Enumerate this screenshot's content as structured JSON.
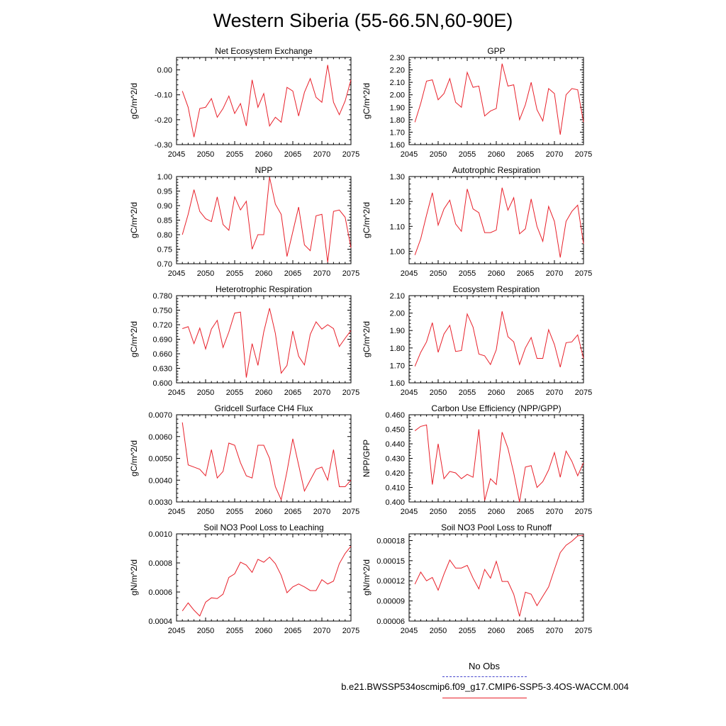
{
  "title": "Western Siberia (55-66.5N,60-90E)",
  "legend": {
    "obs_label": "No Obs",
    "obs_color": "#4444cc",
    "model_label": "b.e21.BWSSP534oscmip6.f09_g17.CMIP6-SSP5-3.4OS-WACCM.004",
    "model_color": "#e8202a"
  },
  "chart_data": [
    {
      "type": "line",
      "title": "Net Ecosystem Exchange",
      "ylabel": "gC/m^2/d",
      "xlim": [
        2045,
        2075
      ],
      "ylim": [
        -0.3,
        0.05
      ],
      "xticks": [
        2045,
        2050,
        2055,
        2060,
        2065,
        2070,
        2075
      ],
      "yticks": [
        "0.00",
        "-0.10",
        "-0.20",
        "-0.30"
      ],
      "x": [
        2046,
        2047,
        2048,
        2049,
        2050,
        2051,
        2052,
        2053,
        2054,
        2055,
        2056,
        2057,
        2058,
        2059,
        2060,
        2061,
        2062,
        2063,
        2064,
        2065,
        2066,
        2067,
        2068,
        2069,
        2070,
        2071,
        2072,
        2073,
        2074,
        2075
      ],
      "series": [
        {
          "color": "#e8202a",
          "values": [
            -0.085,
            -0.15,
            -0.27,
            -0.155,
            -0.15,
            -0.115,
            -0.19,
            -0.155,
            -0.105,
            -0.175,
            -0.135,
            -0.225,
            -0.04,
            -0.15,
            -0.095,
            -0.225,
            -0.19,
            -0.21,
            -0.07,
            -0.085,
            -0.185,
            -0.09,
            -0.035,
            -0.11,
            -0.13,
            0.02,
            -0.13,
            -0.18,
            -0.125,
            -0.04
          ]
        }
      ]
    },
    {
      "type": "line",
      "title": "GPP",
      "ylabel": "gC/m^2/d",
      "xlim": [
        2045,
        2075
      ],
      "ylim": [
        1.6,
        2.3
      ],
      "xticks": [
        2045,
        2050,
        2055,
        2060,
        2065,
        2070,
        2075
      ],
      "yticks": [
        "2.30",
        "2.20",
        "2.10",
        "2.00",
        "1.90",
        "1.80",
        "1.70",
        "1.60"
      ],
      "x": [
        2046,
        2047,
        2048,
        2049,
        2050,
        2051,
        2052,
        2053,
        2054,
        2055,
        2056,
        2057,
        2058,
        2059,
        2060,
        2061,
        2062,
        2063,
        2064,
        2065,
        2066,
        2067,
        2068,
        2069,
        2070,
        2071,
        2072,
        2073,
        2074,
        2075
      ],
      "series": [
        {
          "color": "#e8202a",
          "values": [
            1.78,
            1.93,
            2.11,
            2.12,
            1.96,
            2.01,
            2.13,
            1.94,
            1.9,
            2.18,
            2.06,
            2.07,
            1.83,
            1.87,
            1.89,
            2.25,
            2.07,
            2.08,
            1.8,
            1.92,
            2.1,
            1.88,
            1.79,
            2.05,
            2.01,
            1.68,
            2.0,
            2.05,
            2.04,
            1.78
          ]
        }
      ]
    },
    {
      "type": "line",
      "title": "NPP",
      "ylabel": "gC/m^2/d",
      "xlim": [
        2045,
        2075
      ],
      "ylim": [
        0.7,
        1.0
      ],
      "xticks": [
        2045,
        2050,
        2055,
        2060,
        2065,
        2070,
        2075
      ],
      "yticks": [
        "1.00",
        "0.95",
        "0.90",
        "0.85",
        "0.80",
        "0.75",
        "0.70"
      ],
      "x": [
        2046,
        2047,
        2048,
        2049,
        2050,
        2051,
        2052,
        2053,
        2054,
        2055,
        2056,
        2057,
        2058,
        2059,
        2060,
        2061,
        2062,
        2063,
        2064,
        2065,
        2066,
        2067,
        2068,
        2069,
        2070,
        2071,
        2072,
        2073,
        2074,
        2075
      ],
      "series": [
        {
          "color": "#e8202a",
          "values": [
            0.8,
            0.87,
            0.955,
            0.88,
            0.855,
            0.845,
            0.93,
            0.835,
            0.815,
            0.93,
            0.885,
            0.915,
            0.75,
            0.8,
            0.8,
            0.998,
            0.905,
            0.87,
            0.725,
            0.81,
            0.895,
            0.765,
            0.745,
            0.865,
            0.87,
            0.705,
            0.88,
            0.885,
            0.86,
            0.755
          ]
        }
      ]
    },
    {
      "type": "line",
      "title": "Autotrophic Respiration",
      "ylabel": "gC/m^2/d",
      "xlim": [
        2045,
        2075
      ],
      "ylim": [
        0.95,
        1.3
      ],
      "xticks": [
        2045,
        2050,
        2055,
        2060,
        2065,
        2070,
        2075
      ],
      "yticks": [
        "1.30",
        "1.20",
        "1.10",
        "1.00"
      ],
      "x": [
        2046,
        2047,
        2048,
        2049,
        2050,
        2051,
        2052,
        2053,
        2054,
        2055,
        2056,
        2057,
        2058,
        2059,
        2060,
        2061,
        2062,
        2063,
        2064,
        2065,
        2066,
        2067,
        2068,
        2069,
        2070,
        2071,
        2072,
        2073,
        2074,
        2075
      ],
      "series": [
        {
          "color": "#e8202a",
          "values": [
            0.985,
            1.05,
            1.145,
            1.235,
            1.105,
            1.17,
            1.205,
            1.11,
            1.08,
            1.25,
            1.17,
            1.155,
            1.075,
            1.075,
            1.085,
            1.255,
            1.165,
            1.215,
            1.07,
            1.09,
            1.21,
            1.1,
            1.04,
            1.18,
            1.12,
            0.975,
            1.12,
            1.16,
            1.185,
            1.03
          ]
        }
      ]
    },
    {
      "type": "line",
      "title": "Heterotrophic Respiration",
      "ylabel": "gC/m^2/d",
      "xlim": [
        2045,
        2075
      ],
      "ylim": [
        0.6,
        0.78
      ],
      "xticks": [
        2045,
        2050,
        2055,
        2060,
        2065,
        2070,
        2075
      ],
      "yticks": [
        "0.780",
        "0.750",
        "0.720",
        "0.690",
        "0.660",
        "0.630",
        "0.600"
      ],
      "x": [
        2046,
        2047,
        2048,
        2049,
        2050,
        2051,
        2052,
        2053,
        2054,
        2055,
        2056,
        2057,
        2058,
        2059,
        2060,
        2061,
        2062,
        2063,
        2064,
        2065,
        2066,
        2067,
        2068,
        2069,
        2070,
        2071,
        2072,
        2073,
        2074,
        2075
      ],
      "series": [
        {
          "color": "#e8202a",
          "values": [
            0.712,
            0.716,
            0.681,
            0.713,
            0.67,
            0.711,
            0.729,
            0.673,
            0.705,
            0.744,
            0.746,
            0.611,
            0.681,
            0.636,
            0.705,
            0.754,
            0.702,
            0.62,
            0.636,
            0.707,
            0.655,
            0.637,
            0.7,
            0.726,
            0.711,
            0.72,
            0.712,
            0.675,
            0.692,
            0.708
          ]
        }
      ]
    },
    {
      "type": "line",
      "title": "Ecosystem Respiration",
      "ylabel": "gC/m^2/d",
      "xlim": [
        2045,
        2075
      ],
      "ylim": [
        1.6,
        2.1
      ],
      "xticks": [
        2045,
        2050,
        2055,
        2060,
        2065,
        2070,
        2075
      ],
      "yticks": [
        "2.10",
        "2.00",
        "1.90",
        "1.80",
        "1.70",
        "1.60"
      ],
      "x": [
        2046,
        2047,
        2048,
        2049,
        2050,
        2051,
        2052,
        2053,
        2054,
        2055,
        2056,
        2057,
        2058,
        2059,
        2060,
        2061,
        2062,
        2063,
        2064,
        2065,
        2066,
        2067,
        2068,
        2069,
        2070,
        2071,
        2072,
        2073,
        2074,
        2075
      ],
      "series": [
        {
          "color": "#e8202a",
          "values": [
            1.695,
            1.775,
            1.835,
            1.945,
            1.775,
            1.88,
            1.93,
            1.78,
            1.785,
            1.995,
            1.92,
            1.765,
            1.755,
            1.705,
            1.79,
            2.01,
            1.865,
            1.835,
            1.705,
            1.8,
            1.86,
            1.74,
            1.74,
            1.905,
            1.82,
            1.69,
            1.83,
            1.835,
            1.875,
            1.74
          ]
        }
      ]
    },
    {
      "type": "line",
      "title": "Gridcell Surface CH4 Flux",
      "ylabel": "gC/m^2/d",
      "xlim": [
        2045,
        2075
      ],
      "ylim": [
        0.003,
        0.007
      ],
      "xticks": [
        2045,
        2050,
        2055,
        2060,
        2065,
        2070,
        2075
      ],
      "yticks": [
        "0.0070",
        "0.0060",
        "0.0050",
        "0.0040",
        "0.0030"
      ],
      "x": [
        2046,
        2047,
        2048,
        2049,
        2050,
        2051,
        2052,
        2053,
        2054,
        2055,
        2056,
        2057,
        2058,
        2059,
        2060,
        2061,
        2062,
        2063,
        2064,
        2065,
        2066,
        2067,
        2068,
        2069,
        2070,
        2071,
        2072,
        2073,
        2074,
        2075
      ],
      "series": [
        {
          "color": "#e8202a",
          "values": [
            0.00665,
            0.0047,
            0.0046,
            0.0045,
            0.0042,
            0.0054,
            0.0041,
            0.0044,
            0.0057,
            0.0056,
            0.0048,
            0.0042,
            0.0041,
            0.0056,
            0.0056,
            0.005,
            0.0037,
            0.0031,
            0.0044,
            0.0059,
            0.0047,
            0.0035,
            0.004,
            0.0045,
            0.0046,
            0.004,
            0.0054,
            0.0037,
            0.0037,
            0.004
          ]
        }
      ]
    },
    {
      "type": "line",
      "title": "Carbon Use Efficiency (NPP/GPP)",
      "ylabel": "NPP/GPP",
      "xlim": [
        2045,
        2075
      ],
      "ylim": [
        0.4,
        0.46
      ],
      "xticks": [
        2045,
        2050,
        2055,
        2060,
        2065,
        2070,
        2075
      ],
      "yticks": [
        "0.460",
        "0.450",
        "0.440",
        "0.430",
        "0.420",
        "0.410",
        "0.400"
      ],
      "x": [
        2046,
        2047,
        2048,
        2049,
        2050,
        2051,
        2052,
        2053,
        2054,
        2055,
        2056,
        2057,
        2058,
        2059,
        2060,
        2061,
        2062,
        2063,
        2064,
        2065,
        2066,
        2067,
        2068,
        2069,
        2070,
        2071,
        2072,
        2073,
        2074,
        2075
      ],
      "series": [
        {
          "color": "#e8202a",
          "values": [
            0.449,
            0.452,
            0.453,
            0.412,
            0.44,
            0.416,
            0.421,
            0.42,
            0.416,
            0.419,
            0.417,
            0.45,
            0.401,
            0.416,
            0.412,
            0.448,
            0.437,
            0.42,
            0.4,
            0.424,
            0.425,
            0.41,
            0.414,
            0.422,
            0.434,
            0.417,
            0.435,
            0.428,
            0.418,
            0.427
          ]
        }
      ]
    },
    {
      "type": "line",
      "title": "Soil NO3 Pool Loss to Leaching",
      "ylabel": "gN/m^2/d",
      "xlim": [
        2045,
        2075
      ],
      "ylim": [
        0.0004,
        0.001
      ],
      "xticks": [
        2045,
        2050,
        2055,
        2060,
        2065,
        2070,
        2075
      ],
      "yticks": [
        "0.0010",
        "0.0008",
        "0.0006",
        "0.0004"
      ],
      "x": [
        2046,
        2047,
        2048,
        2049,
        2050,
        2051,
        2052,
        2053,
        2054,
        2055,
        2056,
        2057,
        2058,
        2059,
        2060,
        2061,
        2062,
        2063,
        2064,
        2065,
        2066,
        2067,
        2068,
        2069,
        2070,
        2071,
        2072,
        2073,
        2074,
        2075
      ],
      "series": [
        {
          "color": "#e8202a",
          "values": [
            0.00047,
            0.000525,
            0.000475,
            0.000435,
            0.00053,
            0.00056,
            0.000555,
            0.000585,
            0.0007,
            0.000725,
            0.000805,
            0.000785,
            0.000735,
            0.000825,
            0.000805,
            0.00084,
            0.000795,
            0.000715,
            0.000595,
            0.000635,
            0.000655,
            0.000635,
            0.00061,
            0.00061,
            0.000685,
            0.000655,
            0.000675,
            0.000795,
            0.000865,
            0.000915
          ]
        }
      ]
    },
    {
      "type": "line",
      "title": "Soil NO3 Pool Loss to Runoff",
      "ylabel": "gN/m^2/d",
      "xlim": [
        2045,
        2075
      ],
      "ylim": [
        6e-05,
        0.00019
      ],
      "xticks": [
        2045,
        2050,
        2055,
        2060,
        2065,
        2070,
        2075
      ],
      "yticks": [
        "0.00018",
        "0.00015",
        "0.00012",
        "0.00009",
        "0.00006"
      ],
      "x": [
        2046,
        2047,
        2048,
        2049,
        2050,
        2051,
        2052,
        2053,
        2054,
        2055,
        2056,
        2057,
        2058,
        2059,
        2060,
        2061,
        2062,
        2063,
        2064,
        2065,
        2066,
        2067,
        2068,
        2069,
        2070,
        2071,
        2072,
        2073,
        2074,
        2075
      ],
      "series": [
        {
          "color": "#e8202a",
          "values": [
            0.000115,
            0.000133,
            0.00012,
            0.000125,
            0.000106,
            0.00013,
            0.000151,
            0.000139,
            0.000139,
            0.000143,
            0.000124,
            0.000108,
            0.000137,
            0.000124,
            0.000149,
            0.000119,
            0.000119,
            0.0001,
            6.7e-05,
            0.000103,
            0.0001,
            8.3e-05,
            9.7e-05,
            0.000111,
            0.000137,
            0.000162,
            0.000173,
            0.000179,
            0.000187,
            0.000188
          ]
        }
      ]
    }
  ]
}
